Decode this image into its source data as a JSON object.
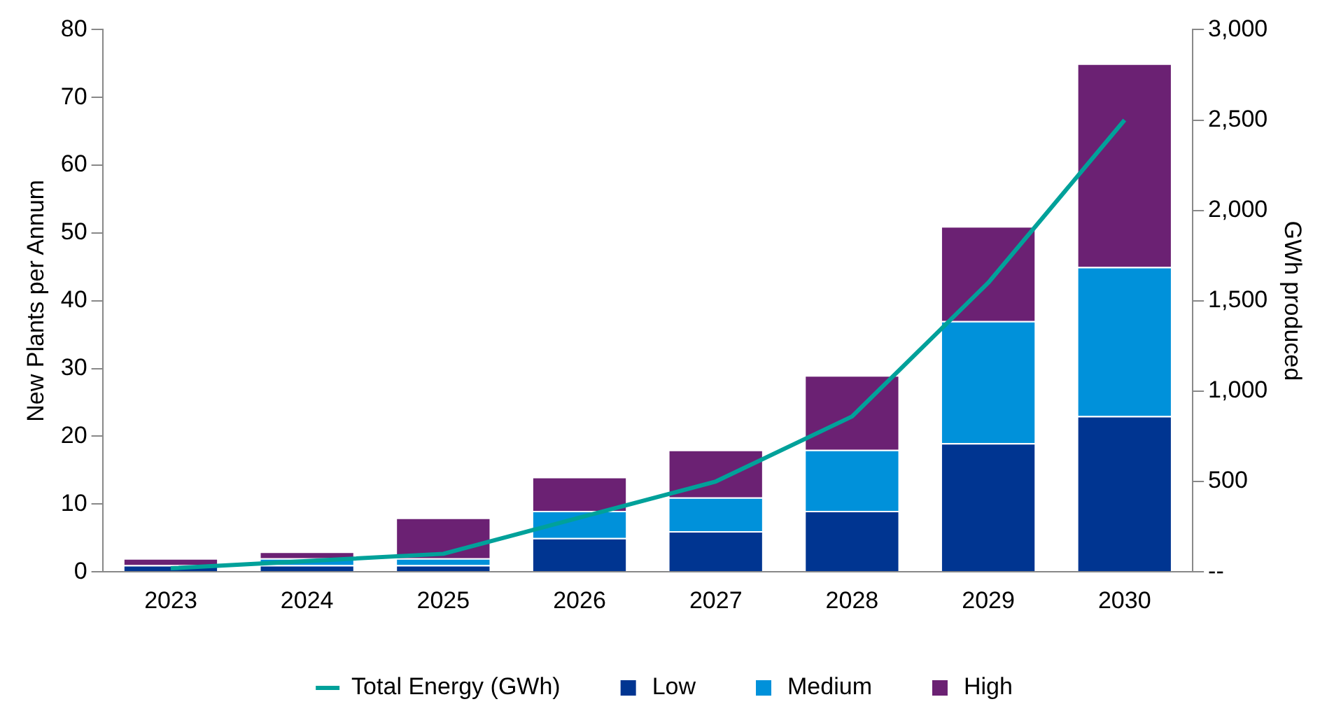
{
  "chart_data": {
    "type": "bar",
    "stacked": true,
    "categories": [
      "2023",
      "2024",
      "2025",
      "2026",
      "2027",
      "2028",
      "2029",
      "2030"
    ],
    "series": [
      {
        "name": "Low",
        "color": "#003591",
        "values": [
          1,
          1,
          1,
          5,
          6,
          9,
          19,
          23
        ]
      },
      {
        "name": "Medium",
        "color": "#0091da",
        "values": [
          0,
          1,
          1,
          4,
          5,
          9,
          18,
          22
        ]
      },
      {
        "name": "High",
        "color": "#6b2173",
        "values": [
          1,
          1,
          6,
          5,
          7,
          11,
          14,
          30
        ]
      },
      {
        "name": "Total Energy (GWh)",
        "type": "line",
        "axis": "y2",
        "color": "#00a19a",
        "values": [
          20,
          60,
          100,
          300,
          500,
          860,
          1600,
          2500
        ]
      }
    ],
    "ylabel": "New Plants per Annum",
    "y2label": "GWh produced",
    "ylim": [
      0,
      80
    ],
    "yticks": [
      0,
      10,
      20,
      30,
      40,
      50,
      60,
      70,
      80
    ],
    "y2lim": [
      0,
      3000
    ],
    "y2ticks": [
      {
        "value": 0,
        "label": "--"
      },
      500,
      {
        "value": 1000,
        "label": "1,000"
      },
      {
        "value": 1500,
        "label": "1,500"
      },
      {
        "value": 2000,
        "label": "2,000"
      },
      {
        "value": 2500,
        "label": "2,500"
      },
      {
        "value": 3000,
        "label": "3,000"
      }
    ],
    "grid": false,
    "legend": "bottom",
    "marker": "none",
    "line_style": "solid"
  }
}
